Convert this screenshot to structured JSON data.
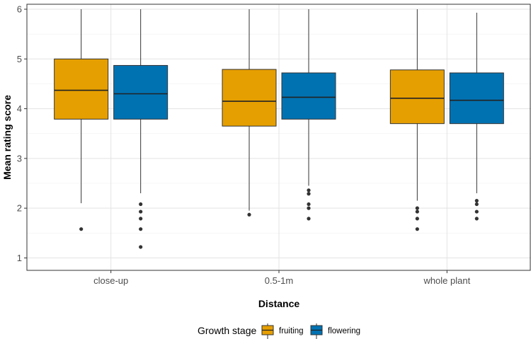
{
  "chart_data": {
    "type": "box",
    "xlabel": "Distance",
    "ylabel": "Mean rating score",
    "categories": [
      "close-up",
      "0.5-1m",
      "whole plant"
    ],
    "ylim": [
      0.75,
      6.1
    ],
    "yticks": [
      1,
      2,
      3,
      4,
      5,
      6
    ],
    "grid": true,
    "legend": {
      "title": "Growth stage",
      "position": "bottom",
      "entries": [
        "fruiting",
        "flowering"
      ]
    },
    "series": [
      {
        "name": "fruiting",
        "color": "#E69F00",
        "boxes": [
          {
            "category": "close-up",
            "lower_whisker": 2.1,
            "q1": 3.79,
            "median": 4.37,
            "q3": 5.0,
            "upper_whisker": 6.0,
            "outliers": [
              1.58
            ]
          },
          {
            "category": "0.5-1m",
            "lower_whisker": 1.95,
            "q1": 3.65,
            "median": 4.15,
            "q3": 4.79,
            "upper_whisker": 6.0,
            "outliers": [
              1.87
            ]
          },
          {
            "category": "whole plant",
            "lower_whisker": 2.15,
            "q1": 3.7,
            "median": 4.21,
            "q3": 4.78,
            "upper_whisker": 6.0,
            "outliers": [
              2.0,
              1.93,
              1.79,
              1.58
            ]
          }
        ]
      },
      {
        "name": "flowering",
        "color": "#0072B2",
        "boxes": [
          {
            "category": "close-up",
            "lower_whisker": 2.3,
            "q1": 3.79,
            "median": 4.3,
            "q3": 4.87,
            "upper_whisker": 6.0,
            "outliers": [
              2.08,
              1.93,
              1.79,
              1.58,
              1.22
            ]
          },
          {
            "category": "0.5-1m",
            "lower_whisker": 2.45,
            "q1": 3.79,
            "median": 4.23,
            "q3": 4.72,
            "upper_whisker": 6.0,
            "outliers": [
              2.36,
              2.29,
              2.08,
              2.0,
              1.79
            ]
          },
          {
            "category": "whole plant",
            "lower_whisker": 2.3,
            "q1": 3.7,
            "median": 4.17,
            "q3": 4.72,
            "upper_whisker": 5.93,
            "outliers": [
              2.15,
              2.08,
              1.93,
              1.79
            ]
          }
        ]
      }
    ]
  }
}
